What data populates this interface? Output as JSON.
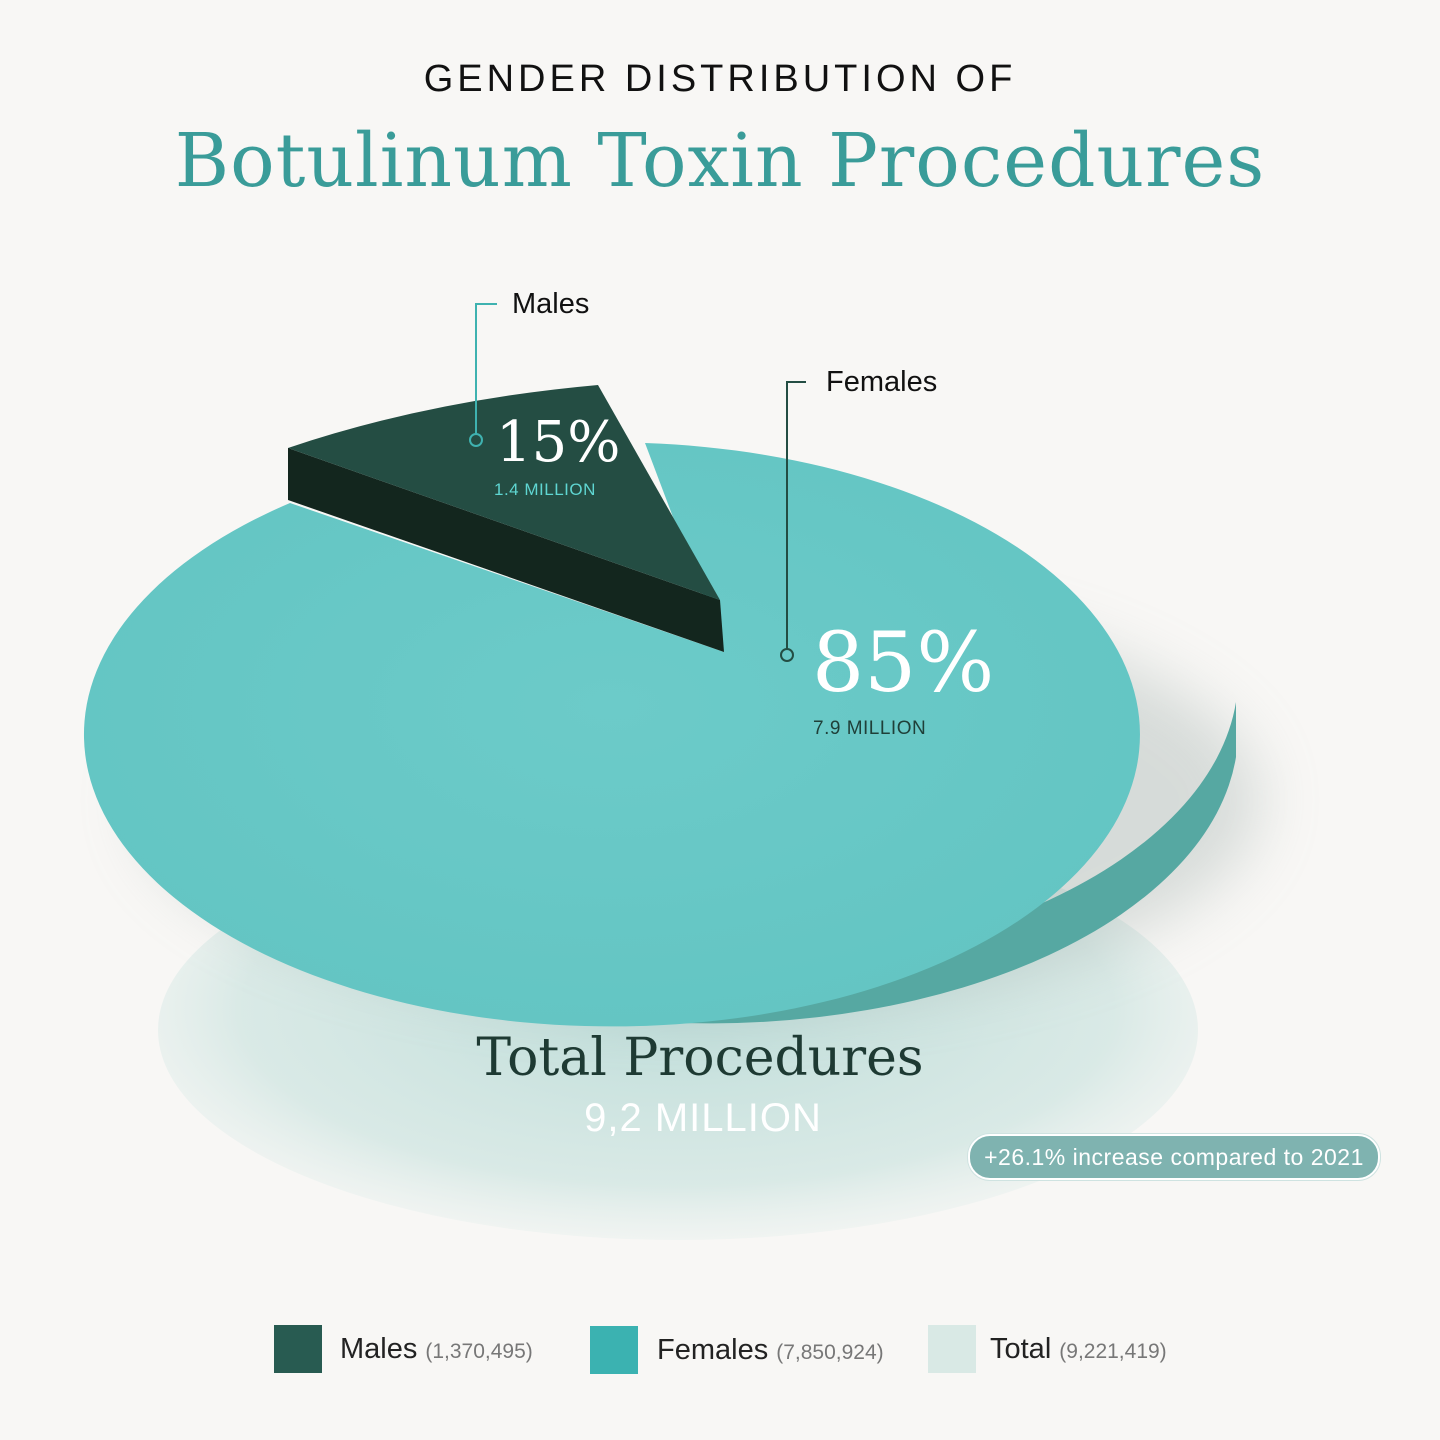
{
  "header": {
    "kicker": "GENDER DISTRIBUTION OF",
    "title": "Botulinum Toxin Procedures"
  },
  "chart_data": {
    "type": "pie",
    "title": "GENDER DISTRIBUTION OF Botulinum Toxin Procedures",
    "slices": [
      {
        "label": "Males",
        "percent": 15,
        "value_label": "1.4 MILLION",
        "count": 1370495,
        "count_label": "(1,370,495)",
        "color": "#234d43"
      },
      {
        "label": "Females",
        "percent": 85,
        "value_label": "7.9 MILLION",
        "count": 7850924,
        "count_label": "(7,850,924)",
        "color": "#67c8c6"
      }
    ],
    "total": {
      "label": "Total",
      "count": 9221419,
      "count_label": "(9,221,419)",
      "color": "#d9e9e5"
    },
    "exploded_slice": "Males",
    "legend_position": "bottom"
  },
  "labels": {
    "males_pct": "15%",
    "males_sub": "1.4 MILLION",
    "females_pct": "85%",
    "females_sub": "7.9 MILLION"
  },
  "summary": {
    "title": "Total Procedures",
    "value": "9,2 MILLION",
    "increase": "+26.1% increase compared to 2021"
  },
  "legend": [
    {
      "name": "Males",
      "count": "(1,370,495)",
      "color": "#285b51"
    },
    {
      "name": "Females",
      "count": "(7,850,924)",
      "color": "#3bb2b1"
    },
    {
      "name": "Total",
      "count": "(9,221,419)",
      "color": "#d9e9e5"
    }
  ]
}
